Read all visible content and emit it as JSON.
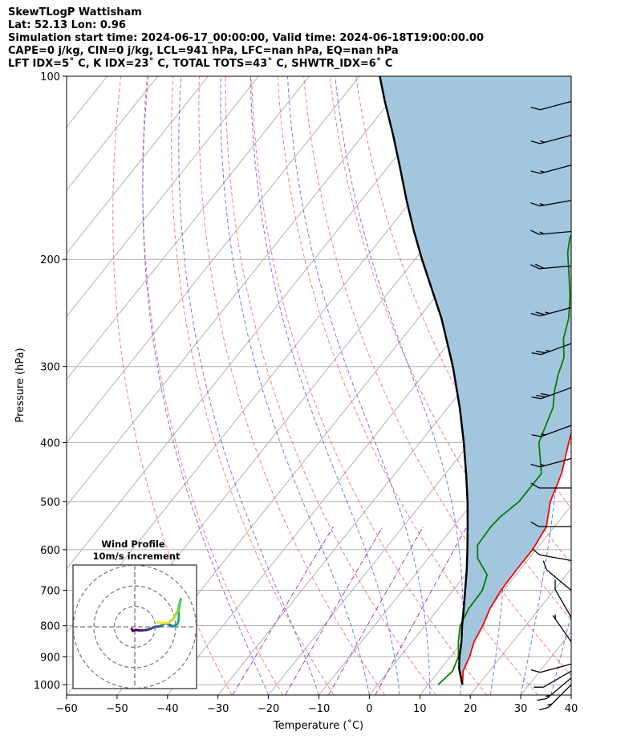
{
  "header": {
    "line1": "SkewTLogP Wattisham",
    "line2": "Lat: 52.13   Lon: 0.96",
    "line3": "Simulation start time: 2024-06-17_00:00:00, Valid time: 2024-06-18T19:00:00.00",
    "line4": "CAPE=0 j/kg, CIN=0 j/kg, LCL=941 hPa, LFC=nan hPa, EQ=nan hPa",
    "line5": "LFT IDX=5˚ C, K IDX=23˚ C, TOTAL TOTS=43˚ C, SHWTR_IDX=6˚ C"
  },
  "chart_data": {
    "type": "line",
    "subtype": "skew-t log-p",
    "xlabel": "Temperature (˚C)",
    "ylabel": "Pressure (hPa)",
    "xlim": [
      -60,
      40
    ],
    "ylim": [
      1040,
      100
    ],
    "x_ticks": [
      "−60",
      "−50",
      "−40",
      "−30",
      "−20",
      "−10",
      "0",
      "10",
      "20",
      "30",
      "40"
    ],
    "y_ticks": [
      "100",
      "200",
      "300",
      "400",
      "500",
      "600",
      "700",
      "800",
      "900",
      "1000"
    ],
    "grid": true,
    "series": [
      {
        "role": "temperature",
        "color": "#ff0000",
        "points": [
          [
            16.8,
            1000
          ],
          [
            14.8,
            950
          ],
          [
            13.8,
            900
          ],
          [
            12.3,
            850
          ],
          [
            11.5,
            800
          ],
          [
            10.2,
            750
          ],
          [
            9.5,
            700
          ],
          [
            9.3,
            650
          ],
          [
            9.3,
            600
          ],
          [
            8.4,
            550
          ],
          [
            5.2,
            500
          ],
          [
            3.0,
            450
          ],
          [
            -0.5,
            400
          ],
          [
            -4.1,
            350
          ],
          [
            -7.2,
            310
          ],
          [
            -7.8,
            293
          ],
          [
            -7.5,
            280
          ],
          [
            -6.7,
            260
          ],
          [
            -6.5,
            240
          ],
          [
            -5.8,
            225
          ],
          [
            -5.3,
            200
          ],
          [
            -5.8,
            185
          ],
          [
            -6.4,
            170
          ],
          [
            -6.8,
            160
          ],
          [
            -7.4,
            150
          ],
          [
            -7.8,
            140
          ],
          [
            -8.4,
            130
          ],
          [
            -9.2,
            120
          ],
          [
            -10.4,
            110
          ],
          [
            -11.5,
            100
          ]
        ]
      },
      {
        "role": "dewpoint",
        "color": "#008000",
        "points": [
          [
            12.0,
            1000
          ],
          [
            12.7,
            950
          ],
          [
            11.6,
            900
          ],
          [
            9.2,
            850
          ],
          [
            7.0,
            800
          ],
          [
            6.0,
            750
          ],
          [
            5.8,
            700
          ],
          [
            4.3,
            660
          ],
          [
            -0.2,
            620
          ],
          [
            -2.3,
            590
          ],
          [
            -2.6,
            550
          ],
          [
            -2.3,
            530
          ],
          [
            -1.0,
            500
          ],
          [
            -1.0,
            450
          ],
          [
            -6.4,
            400
          ],
          [
            -9.2,
            350
          ],
          [
            -11.4,
            330
          ],
          [
            -13.3,
            310
          ],
          [
            -14.9,
            290
          ],
          [
            -18.0,
            270
          ],
          [
            -20.2,
            250
          ],
          [
            -23.4,
            230
          ],
          [
            -26.4,
            215
          ],
          [
            -29.2,
            202
          ],
          [
            -30.8,
            195
          ],
          [
            -32.6,
            185
          ],
          [
            -34.3,
            170
          ],
          [
            -36.3,
            160
          ],
          [
            -38.6,
            150
          ],
          [
            -40.8,
            140
          ],
          [
            -43.3,
            130
          ],
          [
            -46.4,
            120
          ],
          [
            -49.5,
            110
          ],
          [
            -52.6,
            100
          ]
        ]
      },
      {
        "role": "parcel profile",
        "color": "#000000",
        "points": [
          [
            16.8,
            1000
          ],
          [
            13.6,
            941
          ],
          [
            11.8,
            900
          ],
          [
            9.8,
            850
          ],
          [
            7.4,
            800
          ],
          [
            5.0,
            750
          ],
          [
            2.4,
            700
          ],
          [
            -0.4,
            650
          ],
          [
            -3.6,
            600
          ],
          [
            -7.2,
            550
          ],
          [
            -11.2,
            500
          ],
          [
            -15.9,
            450
          ],
          [
            -21.3,
            400
          ],
          [
            -27.7,
            350
          ],
          [
            -35.5,
            300
          ],
          [
            -45.4,
            250
          ],
          [
            -58.6,
            200
          ],
          [
            -64.6,
            180
          ],
          [
            -71.0,
            160
          ],
          [
            -78.0,
            140
          ],
          [
            -84.0,
            125
          ],
          [
            -91.0,
            110
          ],
          [
            -96.0,
            100
          ]
        ]
      }
    ],
    "shaded_area": {
      "between": [
        "temperature",
        "parcel profile"
      ],
      "color": "#a3c6df"
    },
    "background_lines": {
      "isotherms": "grey solid",
      "dry_adiabats": "red dashed",
      "moist_adiabats": "blue dashed",
      "mixing_ratio": "purple dash-dot"
    },
    "wind_barbs": [
      {
        "p": 1000,
        "dir": 225,
        "kt": 14
      },
      {
        "p": 975,
        "dir": 230,
        "kt": 14
      },
      {
        "p": 950,
        "dir": 240,
        "kt": 12
      },
      {
        "p": 925,
        "dir": 255,
        "kt": 12
      },
      {
        "p": 850,
        "dir": 325,
        "kt": 7
      },
      {
        "p": 775,
        "dir": 330,
        "kt": 9
      },
      {
        "p": 700,
        "dir": 310,
        "kt": 11
      },
      {
        "p": 625,
        "dir": 280,
        "kt": 8
      },
      {
        "p": 550,
        "dir": 270,
        "kt": 10
      },
      {
        "p": 475,
        "dir": 270,
        "kt": 9
      },
      {
        "p": 425,
        "dir": 255,
        "kt": 14
      },
      {
        "p": 375,
        "dir": 250,
        "kt": 17
      },
      {
        "p": 325,
        "dir": 250,
        "kt": 29
      },
      {
        "p": 275,
        "dir": 250,
        "kt": 24
      },
      {
        "p": 240,
        "dir": 255,
        "kt": 23
      },
      {
        "p": 205,
        "dir": 265,
        "kt": 18
      },
      {
        "p": 180,
        "dir": 265,
        "kt": 17
      },
      {
        "p": 160,
        "dir": 260,
        "kt": 17
      },
      {
        "p": 140,
        "dir": 255,
        "kt": 15
      },
      {
        "p": 125,
        "dir": 255,
        "kt": 14
      },
      {
        "p": 110,
        "dir": 255,
        "kt": 12
      }
    ],
    "inset": {
      "title": "Wind Profile",
      "subtitle": "10m/s increment",
      "rings_ms": [
        10,
        20,
        30
      ],
      "hodograph": [
        [
          -1.5,
          -1.0
        ],
        [
          -1.0,
          -2.0
        ],
        [
          0.5,
          -1.5
        ],
        [
          3.0,
          -1.8
        ],
        [
          6.0,
          -1.5
        ],
        [
          8.0,
          -0.8
        ],
        [
          10.0,
          0
        ],
        [
          12.5,
          0.3
        ],
        [
          15.0,
          1.8
        ],
        [
          17.0,
          1.0
        ],
        [
          18.5,
          0.2
        ],
        [
          19.5,
          0.5
        ],
        [
          21.0,
          1.5
        ],
        [
          21.5,
          3.5
        ],
        [
          21.5,
          8.0
        ],
        [
          22.0,
          11.0
        ],
        [
          22.5,
          13.5
        ],
        [
          21.0,
          8.0
        ],
        [
          19.0,
          4.0
        ],
        [
          16.5,
          2.0
        ],
        [
          13.5,
          1.8
        ],
        [
          11.0,
          2.2
        ]
      ]
    }
  }
}
